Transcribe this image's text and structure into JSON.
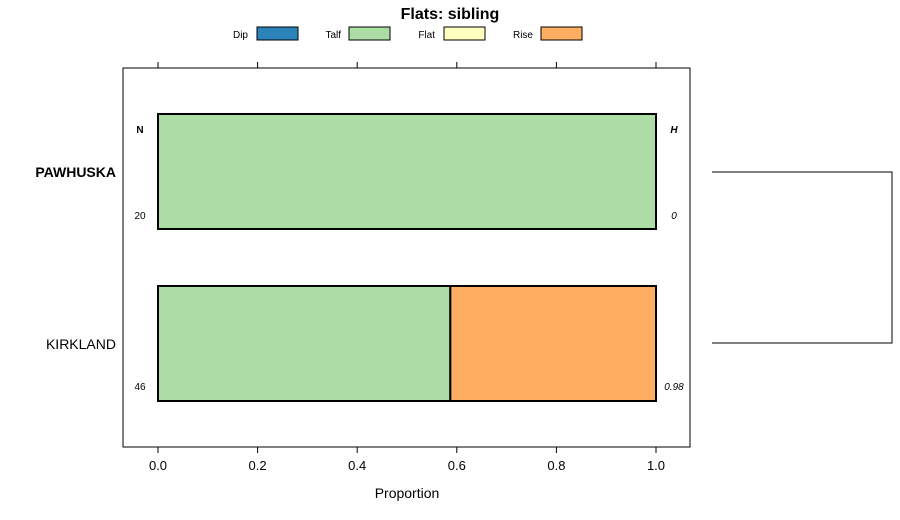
{
  "chart_data": {
    "type": "bar",
    "orientation": "horizontal",
    "stacked": true,
    "title": "Flats: sibling",
    "xlabel": "Proportion",
    "ylabel": "",
    "xlim": [
      0,
      1
    ],
    "x_ticks": [
      "0.0",
      "0.2",
      "0.4",
      "0.6",
      "0.8",
      "1.0"
    ],
    "categories": [
      "PAWHUSKA",
      "KIRKLAND"
    ],
    "category_bold": [
      true,
      false
    ],
    "series": [
      {
        "name": "Dip",
        "color": "#2b83ba",
        "values": [
          0,
          0
        ]
      },
      {
        "name": "Talf",
        "color": "#abdda4",
        "values": [
          1.0,
          0.587
        ]
      },
      {
        "name": "Flat",
        "color": "#ffffbf",
        "values": [
          0,
          0
        ]
      },
      {
        "name": "Rise",
        "color": "#fdae61",
        "values": [
          0,
          0.413
        ]
      }
    ],
    "left_column_header": "N",
    "right_column_header": "H",
    "n_values": [
      "20",
      "46"
    ],
    "h_values": [
      "0",
      "0.98"
    ],
    "legend_position": "top",
    "grid": false,
    "dendrogram": true
  }
}
